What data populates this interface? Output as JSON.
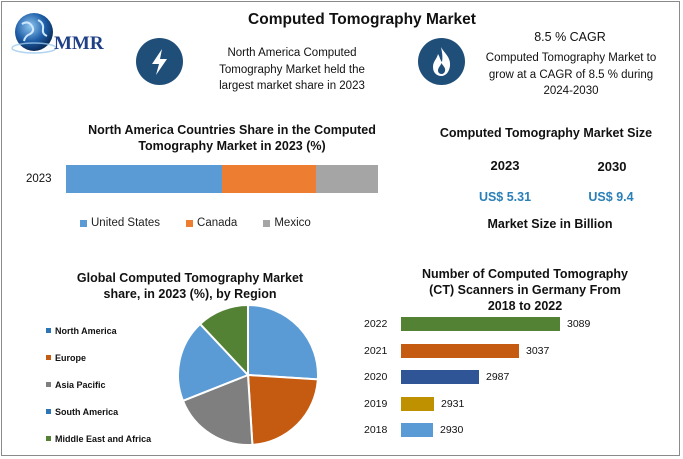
{
  "brand": {
    "logo_text": "MMR"
  },
  "title": "Computed Tomography Market",
  "info_left": {
    "icon": "lightning-icon",
    "lines": [
      "North America Computed",
      "Tomography Market held the",
      "largest market share in 2023"
    ]
  },
  "info_right": {
    "icon": "flame-icon",
    "heading": "8.5 % CAGR",
    "lines": [
      "Computed Tomography Market to",
      "grow at a CAGR of 8.5 % during",
      "2024-2030"
    ]
  },
  "market_size": {
    "title": "Computed Tomography Market Size",
    "years": [
      "2023",
      "2030"
    ],
    "values": [
      "US$ 5.31",
      "US$ 9.4"
    ],
    "note": "Market Size in Billion"
  },
  "colors": {
    "us_blue": "#5b9bd5",
    "canada_orange": "#ed7d31",
    "mexico_gray": "#a5a5a5",
    "pie_blue": "#5b9bd5",
    "pie_orange": "#c55a11",
    "pie_gray": "#7f7f7f",
    "pie_lightblue": "#5b9bd5",
    "pie_green": "#548235",
    "bar_green": "#548235",
    "bar_orange": "#c55a11",
    "bar_navy": "#2f5597",
    "bar_gold": "#bf9000",
    "bar_lightblue": "#5b9bd5",
    "accent_value": "#2a7fb8",
    "badge": "#1f4e79"
  },
  "chart_data": [
    {
      "type": "bar",
      "orientation": "horizontal-stacked",
      "title": "North America Countries Share in the Computed Tomography   Market in 2023 (%)",
      "title_lines": [
        "North America Countries Share in the Computed",
        "Tomography   Market in 2023 (%)"
      ],
      "categories": [
        "2023"
      ],
      "series": [
        {
          "name": "United States",
          "values": [
            50
          ]
        },
        {
          "name": "Canada",
          "values": [
            30
          ]
        },
        {
          "name": "Mexico",
          "values": [
            20
          ]
        }
      ],
      "legend_position": "bottom"
    },
    {
      "type": "pie",
      "title": "Global Computed Tomography  Market share, in 2023 (%), by Region",
      "title_lines": [
        "Global Computed Tomography  Market",
        "share, in 2023 (%), by Region"
      ],
      "labels": [
        "North America",
        "Europe",
        "Asia Pacific",
        "South America",
        "Middle East and Africa"
      ],
      "values": [
        26,
        23,
        20,
        19,
        12
      ],
      "legend_position": "left"
    },
    {
      "type": "bar",
      "orientation": "horizontal",
      "title": "Number of Computed Tomography (CT) Scanners in Germany From 2018 to 2022",
      "title_lines": [
        "Number of Computed Tomography",
        "(CT) Scanners in Germany From",
        "2018 to 2022"
      ],
      "categories": [
        "2022",
        "2021",
        "2020",
        "2019",
        "2018"
      ],
      "values": [
        3089,
        3037,
        2987,
        2931,
        2930
      ],
      "data_labels": [
        "3089",
        "3037",
        "2987",
        "2931",
        "2930"
      ],
      "xlim": [
        2890,
        3100
      ]
    }
  ]
}
